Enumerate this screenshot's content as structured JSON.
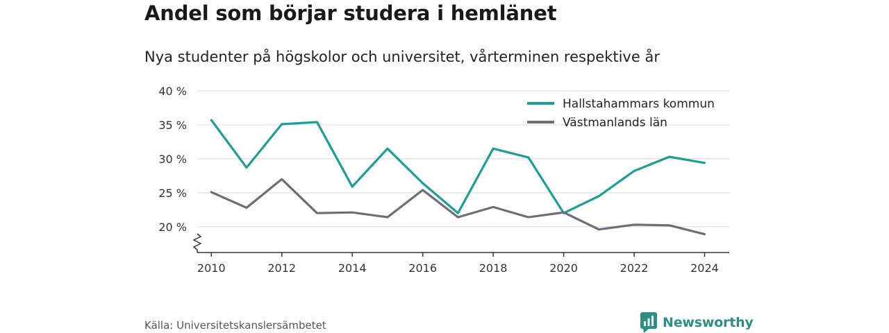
{
  "header": {
    "title": "Andel som börjar studera i hemlänet",
    "subtitle": "Nya studenter på högskolor och universitet, vårterminen respektive år"
  },
  "footer": {
    "source": "Källa: Universitetskanslersämbetet",
    "brand": "Newsworthy"
  },
  "colors": {
    "series_1": "#1a9e96",
    "series_2": "#6e6d75",
    "grid": "#dddddd",
    "axis": "#333333",
    "brand": "#2a8f86"
  },
  "chart_data": {
    "type": "line",
    "x": [
      2010,
      2011,
      2012,
      2013,
      2014,
      2015,
      2016,
      2017,
      2018,
      2019,
      2020,
      2021,
      2022,
      2023,
      2024
    ],
    "x_tick_labels": [
      "2010",
      "2012",
      "2014",
      "2016",
      "2018",
      "2020",
      "2022",
      "2024"
    ],
    "y_tick_labels": [
      "20 %",
      "25 %",
      "30 %",
      "35 %",
      "40 %"
    ],
    "series": [
      {
        "name": "Hallstahammars kommun",
        "color": "#1a9e96",
        "values": [
          35.7,
          28.7,
          35.1,
          35.4,
          25.9,
          31.5,
          26.4,
          22.0,
          31.5,
          30.2,
          22.0,
          24.5,
          28.2,
          30.3,
          29.4
        ]
      },
      {
        "name": "Västmanlands län",
        "color": "#6e6d75",
        "values": [
          25.1,
          22.8,
          27.0,
          22.0,
          22.1,
          21.4,
          25.4,
          21.4,
          22.9,
          21.4,
          22.1,
          19.6,
          20.3,
          20.2,
          18.9
        ]
      }
    ],
    "ylim": [
      16.2,
      40
    ],
    "xlim": [
      2009.6,
      2024.7
    ],
    "axis_break": true,
    "grid": true,
    "legend_position": "top-right"
  }
}
